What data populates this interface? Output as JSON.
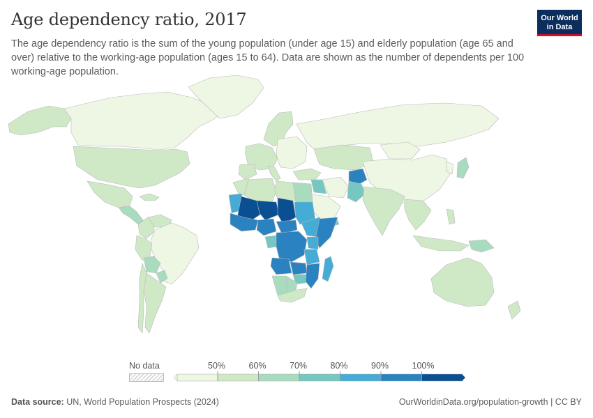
{
  "header": {
    "title": "Age dependency ratio, 2017",
    "subtitle": "The age dependency ratio is the sum of the young population (under age 15) and elderly population (age 65 and over) relative to the working-age population (ages 15 to 64). Data are shown as the number of dependents per 100 working-age population."
  },
  "logo": {
    "line1": "Our World",
    "line2": "in Data"
  },
  "legend": {
    "no_data_label": "No data",
    "ticks": [
      "50%",
      "60%",
      "70%",
      "80%",
      "90%",
      "100%"
    ],
    "colors": [
      "#eef7e4",
      "#cfe9c7",
      "#a9dcbf",
      "#76c7c2",
      "#45acd6",
      "#2b82c0",
      "#0a4f92"
    ]
  },
  "footer": {
    "source_label": "Data source:",
    "source_text": "UN, World Population Prospects (2024)",
    "url": "OurWorldinData.org/population-growth",
    "license": "| CC BY"
  },
  "map_regions": [
    {
      "name": "Canada",
      "bin": 0
    },
    {
      "name": "Greenland",
      "bin": 0
    },
    {
      "name": "Alaska",
      "bin": 1
    },
    {
      "name": "United States",
      "bin": 1
    },
    {
      "name": "Mexico",
      "bin": 1
    },
    {
      "name": "Central America",
      "bin": 2
    },
    {
      "name": "Caribbean",
      "bin": 1
    },
    {
      "name": "Colombia",
      "bin": 1
    },
    {
      "name": "Venezuela",
      "bin": 1
    },
    {
      "name": "Brazil",
      "bin": 0
    },
    {
      "name": "Peru",
      "bin": 1
    },
    {
      "name": "Bolivia",
      "bin": 2
    },
    {
      "name": "Paraguay",
      "bin": 2
    },
    {
      "name": "Argentina",
      "bin": 1
    },
    {
      "name": "Chile",
      "bin": 1
    },
    {
      "name": "Russia",
      "bin": 0
    },
    {
      "name": "Scandinavia",
      "bin": 1
    },
    {
      "name": "Western Europe",
      "bin": 1
    },
    {
      "name": "Eastern Europe",
      "bin": 0
    },
    {
      "name": "Spain",
      "bin": 1
    },
    {
      "name": "Italy",
      "bin": 1
    },
    {
      "name": "Turkey",
      "bin": 1
    },
    {
      "name": "Kazakhstan",
      "bin": 1
    },
    {
      "name": "Mongolia",
      "bin": 0
    },
    {
      "name": "China",
      "bin": 0
    },
    {
      "name": "Japan",
      "bin": 2
    },
    {
      "name": "Korea",
      "bin": 0
    },
    {
      "name": "India",
      "bin": 1
    },
    {
      "name": "Pakistan",
      "bin": 3
    },
    {
      "name": "Afghanistan",
      "bin": 5
    },
    {
      "name": "Iran",
      "bin": 0
    },
    {
      "name": "Iraq",
      "bin": 3
    },
    {
      "name": "Saudi Arabia",
      "bin": 0
    },
    {
      "name": "Yemen",
      "bin": 3
    },
    {
      "name": "Southeast Asia",
      "bin": 1
    },
    {
      "name": "Indonesia",
      "bin": 1
    },
    {
      "name": "Philippines",
      "bin": 1
    },
    {
      "name": "Papua New Guinea",
      "bin": 2
    },
    {
      "name": "Australia",
      "bin": 1
    },
    {
      "name": "New Zealand",
      "bin": 1
    },
    {
      "name": "Morocco",
      "bin": 1
    },
    {
      "name": "Algeria",
      "bin": 1
    },
    {
      "name": "Libya",
      "bin": 1
    },
    {
      "name": "Egypt",
      "bin": 2
    },
    {
      "name": "Mauritania",
      "bin": 4
    },
    {
      "name": "Mali",
      "bin": 6
    },
    {
      "name": "Niger",
      "bin": 6
    },
    {
      "name": "Chad",
      "bin": 6
    },
    {
      "name": "Sudan",
      "bin": 4
    },
    {
      "name": "West Africa Coast",
      "bin": 5
    },
    {
      "name": "Nigeria",
      "bin": 5
    },
    {
      "name": "Central African Republic",
      "bin": 5
    },
    {
      "name": "Ethiopia",
      "bin": 4
    },
    {
      "name": "Somalia",
      "bin": 5
    },
    {
      "name": "Kenya",
      "bin": 4
    },
    {
      "name": "Gabon",
      "bin": 3
    },
    {
      "name": "DR Congo",
      "bin": 5
    },
    {
      "name": "Tanzania",
      "bin": 4
    },
    {
      "name": "Angola",
      "bin": 5
    },
    {
      "name": "Zambia",
      "bin": 5
    },
    {
      "name": "Mozambique",
      "bin": 5
    },
    {
      "name": "Zimbabwe",
      "bin": 3
    },
    {
      "name": "Namibia",
      "bin": 2
    },
    {
      "name": "Botswana",
      "bin": 2
    },
    {
      "name": "South Africa",
      "bin": 1
    },
    {
      "name": "Madagascar",
      "bin": 4
    }
  ]
}
